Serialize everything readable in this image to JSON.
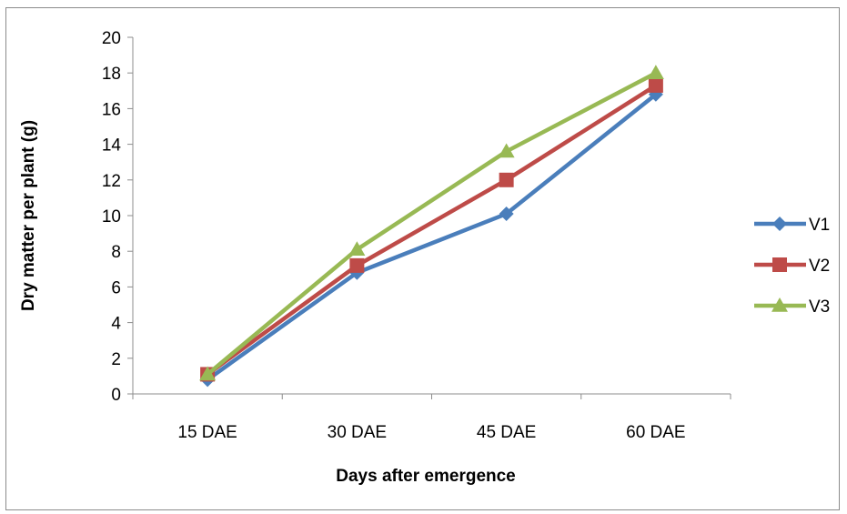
{
  "chart_data": {
    "type": "line",
    "title": "",
    "xlabel": "Days after emergence",
    "ylabel": "Dry matter per plant (g)",
    "categories": [
      "15 DAE",
      "30 DAE",
      "45 DAE",
      "60 DAE"
    ],
    "ylim": [
      0,
      20
    ],
    "yticks": [
      "0",
      "2",
      "4",
      "6",
      "8",
      "10",
      "12",
      "14",
      "16",
      "18",
      "20"
    ],
    "grid": false,
    "legend_position": "right",
    "series": [
      {
        "name": "V1",
        "color": "#4a7ebb",
        "marker": "diamond",
        "values": [
          0.8,
          6.8,
          10.1,
          16.8
        ]
      },
      {
        "name": "V2",
        "color": "#be4b48",
        "marker": "square",
        "values": [
          1.1,
          7.2,
          12.0,
          17.3
        ]
      },
      {
        "name": "V3",
        "color": "#98b954",
        "marker": "triangle",
        "values": [
          1.1,
          8.1,
          13.6,
          18.0
        ]
      }
    ]
  }
}
